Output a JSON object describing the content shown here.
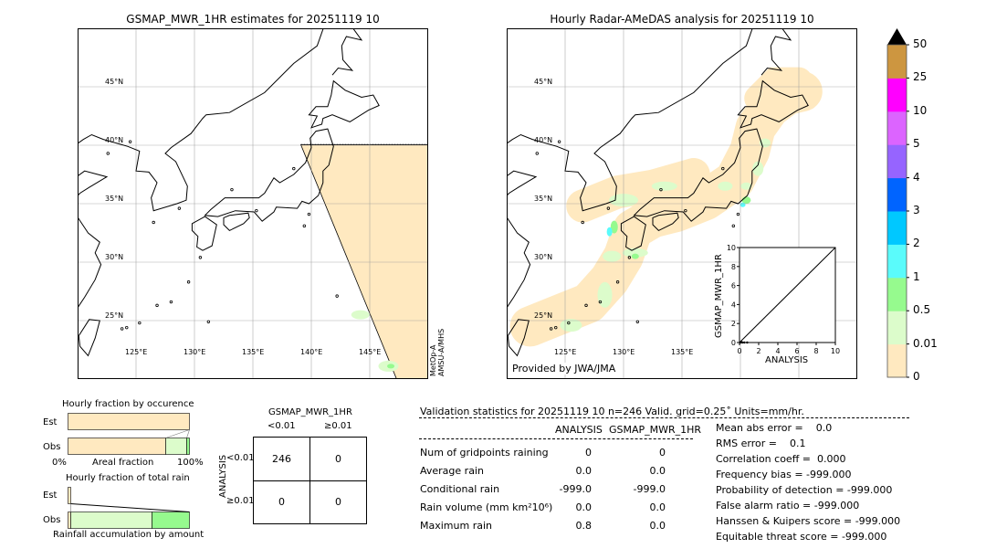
{
  "left_map": {
    "title": "GSMAP_MWR_1HR estimates for 20251119 10",
    "lon_ticks": [
      "125°E",
      "130°E",
      "135°E",
      "140°E",
      "145°E"
    ],
    "lat_ticks": [
      "45°N",
      "40°N",
      "35°N",
      "30°N",
      "25°N"
    ],
    "satellite_label_1": "MetOp-A",
    "satellite_label_2": "AMSU-A/MHS"
  },
  "right_map": {
    "title": "Hourly Radar-AMeDAS analysis for 20251119 10",
    "lon_ticks": [
      "125°E",
      "130°E",
      "135°E"
    ],
    "lat_ticks": [
      "45°N",
      "40°N",
      "35°N",
      "30°N",
      "25°N"
    ],
    "credit": "Provided by JWA/JMA",
    "inset": {
      "xlabel": "ANALYSIS",
      "ylabel": "GSMAP_MWR_1HR",
      "ticks": [
        "0",
        "2",
        "4",
        "6",
        "8",
        "10"
      ],
      "range": [
        0,
        10
      ]
    }
  },
  "colorbar": {
    "levels": [
      "0",
      "0.01",
      "0.5",
      "1",
      "2",
      "3",
      "4",
      "5",
      "10",
      "25",
      "50"
    ],
    "colors": [
      "#ffe9c0",
      "#dcfccb",
      "#96fa8e",
      "#5afbfb",
      "#00c8ff",
      "#0064ff",
      "#9664ff",
      "#dc64ff",
      "#ff00ff",
      "#cd9640"
    ],
    "extend_color": "#000000"
  },
  "occurrence": {
    "title": "Hourly fraction by occurence",
    "est_label": "Est",
    "obs_label": "Obs",
    "xmin_label": "0%",
    "xlabel": "Areal fraction",
    "xmax_label": "100%",
    "est_fractions": {
      "none": 1.0,
      "light": 0.0,
      "moderate": 0.0
    },
    "obs_fractions": {
      "none": 0.81,
      "light": 0.17,
      "moderate": 0.02
    }
  },
  "total_rain": {
    "title": "Hourly fraction of total rain",
    "est_label": "Est",
    "obs_label": "Obs",
    "xlabel": "Rainfall accumulation by amount",
    "est_fractions": {
      "none": 0.02
    },
    "obs_fractions": {
      "none": 0.02,
      "light": 0.67,
      "moderate": 0.31
    }
  },
  "contingency": {
    "title": "GSMAP_MWR_1HR",
    "col_labels": [
      "<0.01",
      "≥0.01"
    ],
    "row_axis_label": "ANALYSIS",
    "row_labels": [
      "<0.01",
      "≥0.01"
    ],
    "cells": [
      [
        "246",
        "0"
      ],
      [
        "0",
        "0"
      ]
    ]
  },
  "stats": {
    "header": "Validation statistics for 20251119 10  n=246 Valid. grid=0.25˚ Units=mm/hr.",
    "col_analysis": "ANALYSIS",
    "col_gsmap": "GSMAP_MWR_1HR",
    "rows": [
      {
        "label": "Num of gridpoints raining",
        "analysis": "0",
        "gsmap": "0"
      },
      {
        "label": "Average rain",
        "analysis": "0.0",
        "gsmap": "0.0"
      },
      {
        "label": "Conditional rain",
        "analysis": "-999.0",
        "gsmap": "-999.0"
      },
      {
        "label": "Rain volume (mm km²10⁶)",
        "analysis": "0.0",
        "gsmap": "0.0"
      },
      {
        "label": "Maximum rain",
        "analysis": "0.8",
        "gsmap": "0.0"
      }
    ],
    "scores": [
      "Mean abs error =    0.0",
      "RMS error =    0.1",
      "Correlation coeff =  0.000",
      "Frequency bias = -999.000",
      "Probability of detection = -999.000",
      "False alarm ratio = -999.000",
      "Hanssen & Kuipers score = -999.000",
      "Equitable threat score = -999.000"
    ]
  },
  "chart_data": {
    "type": "table",
    "map_extent": {
      "lon": [
        120,
        150
      ],
      "lat": [
        20,
        50
      ]
    },
    "contingency": [
      [
        246,
        0
      ],
      [
        0,
        0
      ]
    ],
    "n": 246,
    "analysis": {
      "raining_points": 0,
      "average": 0.0,
      "conditional": -999.0,
      "volume": 0.0,
      "max": 0.8
    },
    "gsmap": {
      "raining_points": 0,
      "average": 0.0,
      "conditional": -999.0,
      "volume": 0.0,
      "max": 0.0
    }
  }
}
